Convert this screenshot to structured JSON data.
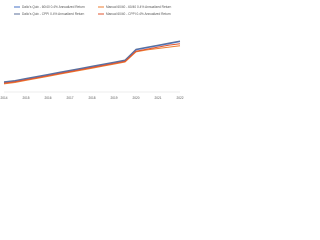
{
  "chart_data": {
    "type": "line",
    "categories": [
      "2014",
      null,
      "2015",
      null,
      "2016",
      null,
      "2017",
      null,
      "2018",
      null,
      "2019",
      null,
      "2020",
      null,
      "2021",
      null,
      "2022"
    ],
    "ylim": [
      0,
      100
    ],
    "series": [
      {
        "name": "Dalio's Quiv - 60/40 0.4% Annualized Return",
        "color": "#4472c4",
        "values": [
          14,
          16,
          19,
          22,
          25,
          28,
          31,
          34,
          37,
          40,
          43,
          46,
          62,
          65,
          68,
          71,
          74
        ]
      },
      {
        "name": "Manual 60/40 - 60/40 0.4% Annualized Return",
        "color": "#ed7d31",
        "values": [
          12,
          14,
          17,
          20,
          23,
          26,
          29,
          32,
          35,
          38,
          41,
          44,
          59,
          62,
          64,
          66,
          68
        ]
      },
      {
        "name": "Dalio's Quiv - CPPI 0.4% Annualized Return",
        "color": "#5b6f9a",
        "values": [
          15,
          17,
          20,
          23,
          26,
          29,
          32,
          35,
          38,
          41,
          44,
          47,
          63,
          66,
          69,
          72,
          75
        ]
      },
      {
        "name": "Manual 60/40 - CPPI 0.4% Annualized Return",
        "color": "#e0552f",
        "values": [
          13,
          15,
          18,
          21,
          24,
          27,
          30,
          33,
          36,
          39,
          42,
          45,
          60,
          63,
          66,
          69,
          71
        ]
      }
    ]
  }
}
